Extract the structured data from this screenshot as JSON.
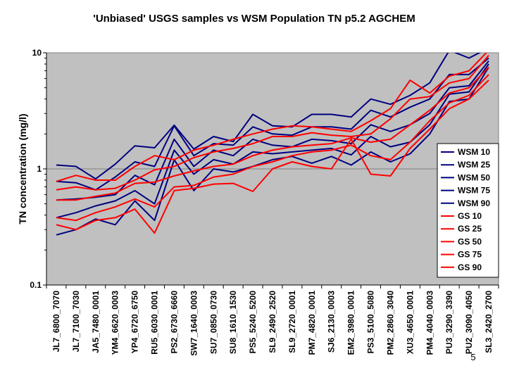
{
  "chart_data": {
    "type": "line",
    "title": "'Unbiased' USGS samples vs WSM Population TN p5.2 AGCHEM",
    "xlabel": "",
    "ylabel": "TN concentration (mg/l)",
    "yscale": "log",
    "ylim": [
      0.1,
      10
    ],
    "yticks": [
      "10",
      "1",
      "0.1"
    ],
    "grid": true,
    "legend_position": "right",
    "categories": [
      "JL7_6800_7070",
      "JL7_7100_7030",
      "JA5_7480_0001",
      "YM4_6620_0003",
      "YP4_6720_6750",
      "RU5_6030_0001",
      "PS2_6730_6660",
      "SW7_1640_0003",
      "SU7_0850_0730",
      "SU8_1610_1530",
      "PS5_5240_5200",
      "SL9_2490_2520",
      "SL9_2720_0001",
      "PM7_4820_0001",
      "SJ6_2130_0003",
      "EM2_3980_0001",
      "PS3_5100_5080",
      "PM2_2860_3040",
      "XU3_4650_0001",
      "PM4_4040_0003",
      "PU3_3290_3390",
      "PU2_3090_4050",
      "SL3_2420_2700"
    ],
    "series": [
      {
        "name": "WSM 10",
        "color": "#000080",
        "values": [
          0.27,
          0.3,
          0.37,
          0.33,
          0.53,
          0.36,
          1.2,
          0.65,
          1.0,
          0.94,
          1.05,
          1.2,
          1.28,
          1.12,
          1.28,
          1.08,
          1.4,
          1.15,
          1.35,
          2.0,
          3.8,
          4.0,
          7.5
        ]
      },
      {
        "name": "WSM 25",
        "color": "#000080",
        "values": [
          0.38,
          0.42,
          0.48,
          0.53,
          0.65,
          0.5,
          1.45,
          0.9,
          1.2,
          1.1,
          1.4,
          1.35,
          1.4,
          1.45,
          1.5,
          1.32,
          1.9,
          1.55,
          1.7,
          2.4,
          4.4,
          4.6,
          8.0
        ]
      },
      {
        "name": "WSM 50",
        "color": "#000080",
        "values": [
          0.54,
          0.55,
          0.57,
          0.6,
          0.88,
          0.73,
          1.8,
          1.05,
          1.45,
          1.3,
          1.8,
          1.6,
          1.55,
          1.8,
          1.75,
          1.65,
          2.4,
          2.1,
          2.4,
          3.0,
          5.0,
          5.2,
          8.5
        ]
      },
      {
        "name": "WSM 75",
        "color": "#000080",
        "values": [
          0.78,
          0.76,
          0.66,
          0.85,
          1.15,
          1.05,
          2.35,
          1.3,
          1.65,
          1.6,
          2.3,
          2.0,
          1.95,
          2.3,
          2.3,
          2.2,
          3.2,
          2.8,
          3.4,
          4.0,
          6.5,
          6.5,
          9.0
        ]
      },
      {
        "name": "WSM 90",
        "color": "#000080",
        "values": [
          1.08,
          1.05,
          0.82,
          1.1,
          1.58,
          1.52,
          2.38,
          1.48,
          1.9,
          1.72,
          2.95,
          2.35,
          2.3,
          2.95,
          2.95,
          2.8,
          4.0,
          3.6,
          4.3,
          5.5,
          10.5,
          9.0,
          11.0
        ]
      },
      {
        "name": "GS 10",
        "color": "#ff0000",
        "values": [
          0.33,
          0.3,
          0.36,
          0.38,
          0.45,
          0.28,
          0.65,
          0.68,
          0.74,
          0.75,
          0.64,
          1.0,
          1.15,
          1.05,
          1.0,
          1.8,
          0.9,
          0.87,
          1.5,
          2.2,
          3.3,
          4.0,
          5.8
        ]
      },
      {
        "name": "GS 25",
        "color": "#ff0000",
        "values": [
          0.38,
          0.36,
          0.42,
          0.47,
          0.55,
          0.47,
          0.7,
          0.72,
          0.85,
          0.9,
          1.05,
          1.15,
          1.3,
          1.4,
          1.45,
          1.6,
          1.3,
          1.2,
          1.7,
          2.6,
          3.7,
          4.3,
          6.5
        ]
      },
      {
        "name": "GS 50",
        "color": "#ff0000",
        "values": [
          0.54,
          0.54,
          0.58,
          0.62,
          0.75,
          0.77,
          0.87,
          0.96,
          1.05,
          1.1,
          1.3,
          1.45,
          1.55,
          1.6,
          1.65,
          1.85,
          1.7,
          1.8,
          2.4,
          3.2,
          4.5,
          5.0,
          7.5
        ]
      },
      {
        "name": "GS 75",
        "color": "#ff0000",
        "values": [
          0.66,
          0.7,
          0.66,
          0.68,
          0.8,
          0.98,
          1.05,
          1.25,
          1.4,
          1.5,
          1.65,
          1.9,
          1.9,
          2.05,
          1.95,
          1.9,
          2.0,
          2.7,
          4.0,
          4.2,
          5.5,
          6.0,
          9.5
        ]
      },
      {
        "name": "GS 90",
        "color": "#ff0000",
        "values": [
          0.78,
          0.88,
          0.8,
          0.8,
          1.05,
          1.3,
          1.2,
          1.45,
          1.6,
          1.8,
          2.0,
          2.2,
          2.35,
          2.3,
          2.2,
          2.1,
          2.6,
          3.3,
          5.8,
          4.5,
          6.3,
          7.0,
          10.5
        ]
      }
    ]
  },
  "page_number": "5"
}
